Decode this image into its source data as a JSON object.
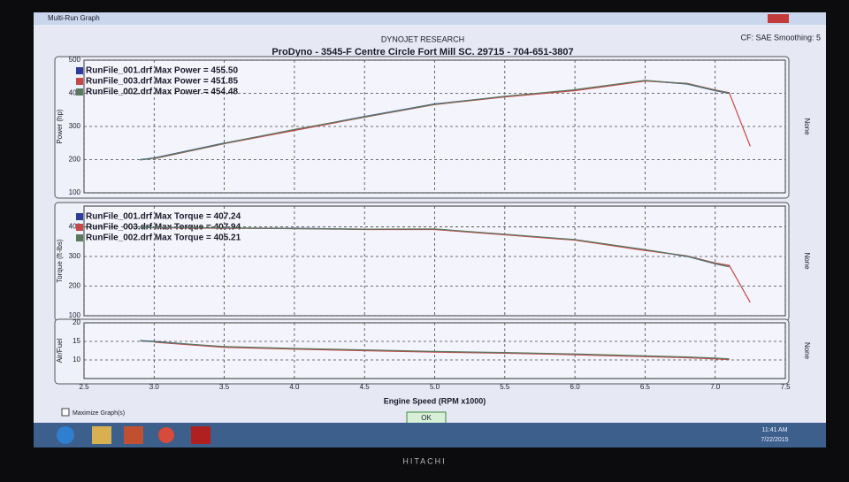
{
  "window": {
    "title": "Multi-Run Graph"
  },
  "header": {
    "company": "DYNOJET RESEARCH",
    "subtitle": "ProDyno - 3545-F Centre Circle Fort Mill SC. 29715 - 704-651-3807",
    "settings": "CF: SAE  Smoothing: 5"
  },
  "chart_data": [
    {
      "type": "line",
      "y_label": "Power (hp)",
      "right_label": "None",
      "x": [
        2.9,
        3.0,
        3.5,
        4.0,
        4.5,
        5.0,
        5.5,
        6.0,
        6.5,
        6.8,
        7.0,
        7.1,
        7.25
      ],
      "xlim": [
        2.5,
        7.5
      ],
      "ylim": [
        100,
        500
      ],
      "yticks": [
        100,
        200,
        300,
        400,
        500
      ],
      "grid": true,
      "series": [
        {
          "name": "RunFile_001.drf Max Power = 455.50",
          "color": "#2c3c9c",
          "values": [
            200,
            205,
            250,
            290,
            330,
            368,
            390,
            410,
            438,
            428,
            408,
            400,
            null
          ]
        },
        {
          "name": "RunFile_003.drf Max Power = 451.85",
          "color": "#c84848",
          "values": [
            null,
            203,
            248,
            288,
            328,
            366,
            389,
            408,
            437,
            430,
            410,
            402,
            240
          ]
        },
        {
          "name": "RunFile_002.drf Max Power = 454.48",
          "color": "#5a7a60",
          "values": [
            199,
            204,
            249,
            291,
            329,
            367,
            391,
            411,
            439,
            429,
            409,
            401,
            null
          ]
        }
      ]
    },
    {
      "type": "line",
      "y_label": "Torque (ft-lbs)",
      "right_label": "None",
      "x": [
        2.9,
        3.0,
        3.5,
        4.0,
        4.5,
        5.0,
        5.5,
        6.0,
        6.5,
        6.8,
        7.0,
        7.1,
        7.25
      ],
      "xlim": [
        2.5,
        7.5
      ],
      "ylim": [
        100,
        470
      ],
      "yticks": [
        100,
        200,
        300,
        400
      ],
      "grid": true,
      "series": [
        {
          "name": "RunFile_001.drf Max Torque = 407.24",
          "color": "#2c3c9c",
          "values": [
            398,
            398,
            396,
            395,
            392,
            392,
            374,
            356,
            322,
            300,
            275,
            265,
            null
          ]
        },
        {
          "name": "RunFile_003.drf Max Torque = 407.94",
          "color": "#c84848",
          "values": [
            null,
            397,
            395,
            394,
            391,
            391,
            373,
            355,
            320,
            302,
            278,
            270,
            145
          ]
        },
        {
          "name": "RunFile_002.drf Max Torque = 405.21",
          "color": "#5a7a60",
          "values": [
            397,
            398,
            396,
            394,
            392,
            393,
            375,
            357,
            323,
            301,
            276,
            266,
            null
          ]
        }
      ]
    },
    {
      "type": "line",
      "y_label": "Air/Fuel",
      "right_label": "None",
      "x_label": "Engine Speed (RPM x1000)",
      "x": [
        2.9,
        3.0,
        3.5,
        4.0,
        4.5,
        5.0,
        5.5,
        6.0,
        6.5,
        6.8,
        7.0,
        7.1,
        7.25
      ],
      "xlim": [
        2.5,
        7.5
      ],
      "xticks": [
        2.5,
        {
          "value": 3,
          "label": "3.0"
        },
        3.5,
        {
          "value": 4,
          "label": "4.0"
        },
        4.5,
        {
          "value": 5,
          "label": "5.0"
        },
        5.5,
        {
          "value": 6,
          "label": "6.0"
        },
        6.5,
        {
          "value": 7,
          "label": "7.0"
        },
        7.5
      ],
      "ylim": [
        5,
        20
      ],
      "yticks": [
        10,
        15,
        20
      ],
      "grid": true,
      "series": [
        {
          "name": "RunFile_001.drf",
          "color": "#2c3c9c",
          "values": [
            15.2,
            15,
            13.5,
            13,
            12.6,
            12.2,
            11.9,
            11.5,
            11,
            10.7,
            10.4,
            10.2,
            null
          ]
        },
        {
          "name": "RunFile_003.drf",
          "color": "#c84848",
          "values": [
            null,
            14.8,
            13.4,
            12.9,
            12.5,
            12.1,
            11.8,
            11.4,
            10.9,
            10.6,
            10.3,
            10.1,
            null
          ]
        },
        {
          "name": "RunFile_002.drf",
          "color": "#5a7a60",
          "values": [
            15.1,
            14.9,
            13.6,
            13.1,
            12.7,
            12.3,
            12,
            11.6,
            11.1,
            10.8,
            10.5,
            10.3,
            null
          ]
        }
      ]
    }
  ],
  "footer": {
    "checkbox": "Maximize Graph(s)",
    "button": "OK"
  },
  "taskbar": {
    "time": "11:41 AM",
    "date": "7/22/2015"
  },
  "monitor": {
    "brand": "HITACHI"
  }
}
